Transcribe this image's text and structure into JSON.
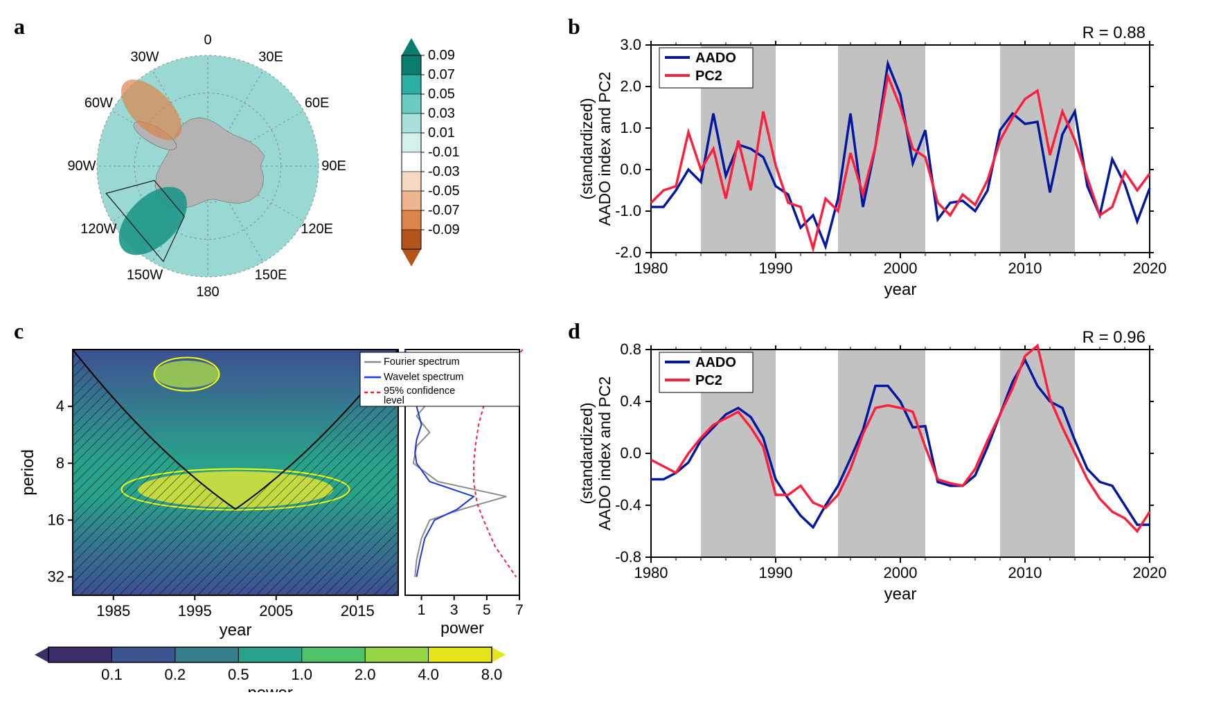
{
  "panel_labels": {
    "a": "a",
    "b": "b",
    "c": "c",
    "d": "d"
  },
  "panel_a": {
    "type": "polar-map",
    "lon_labels": [
      "0",
      "30E",
      "60E",
      "90E",
      "120E",
      "150E",
      "180",
      "150W",
      "120W",
      "90W",
      "60W",
      "30W"
    ],
    "colorbar_ticks": [
      "0.09",
      "0.07",
      "0.05",
      "0.03",
      "0.01",
      "-0.01",
      "-0.03",
      "-0.05",
      "-0.07",
      "-0.09"
    ],
    "colorbar_colors": [
      "#0a7d6e",
      "#2bb0a3",
      "#6cccc4",
      "#a8e1db",
      "#d4f0ed",
      "#ffffff",
      "#f5d7c2",
      "#edb48d",
      "#dc8449",
      "#b5541a"
    ],
    "ocean_fill": "#9ad9d3",
    "land_fill": "#b3b3b3",
    "pos_region": "#dc8449",
    "neg_region": "#1e9688"
  },
  "panel_b": {
    "type": "line",
    "xlim": [
      1980,
      2020
    ],
    "ylim": [
      -2.0,
      3.0
    ],
    "xticks": [
      1980,
      1990,
      2000,
      2010,
      2020
    ],
    "yticks": [
      -2.0,
      -1.0,
      0.0,
      1.0,
      2.0,
      3.0
    ],
    "xlabel": "year",
    "ylabel": "AADO index and PC2\n(standardized)",
    "r_text": "R = 0.88",
    "legend": [
      "AADO",
      "PC2"
    ],
    "series_colors": {
      "AADO": "#0018a1",
      "PC2": "#ff1f3c"
    },
    "shade_color": "#c2c2c2",
    "shaded_ranges": [
      [
        1984,
        1990
      ],
      [
        1995,
        2002
      ],
      [
        2008,
        2014
      ]
    ],
    "aado": [
      [
        1980,
        -0.9
      ],
      [
        1981,
        -0.9
      ],
      [
        1982,
        -0.5
      ],
      [
        1983,
        0.0
      ],
      [
        1984,
        -0.3
      ],
      [
        1985,
        1.35
      ],
      [
        1986,
        -0.15
      ],
      [
        1987,
        0.6
      ],
      [
        1988,
        0.5
      ],
      [
        1989,
        0.3
      ],
      [
        1990,
        -0.4
      ],
      [
        1991,
        -0.6
      ],
      [
        1992,
        -1.4
      ],
      [
        1993,
        -1.1
      ],
      [
        1994,
        -1.85
      ],
      [
        1995,
        -0.7
      ],
      [
        1996,
        1.35
      ],
      [
        1997,
        -0.9
      ],
      [
        1998,
        0.55
      ],
      [
        1999,
        2.55
      ],
      [
        2000,
        1.8
      ],
      [
        2001,
        0.15
      ],
      [
        2002,
        0.95
      ],
      [
        2003,
        -1.2
      ],
      [
        2004,
        -0.8
      ],
      [
        2005,
        -0.75
      ],
      [
        2006,
        -1.0
      ],
      [
        2007,
        -0.5
      ],
      [
        2008,
        0.95
      ],
      [
        2009,
        1.35
      ],
      [
        2010,
        1.1
      ],
      [
        2011,
        1.15
      ],
      [
        2012,
        -0.55
      ],
      [
        2013,
        0.85
      ],
      [
        2014,
        1.4
      ],
      [
        2015,
        -0.4
      ],
      [
        2016,
        -1.1
      ],
      [
        2017,
        0.25
      ],
      [
        2018,
        -0.35
      ],
      [
        2019,
        -1.25
      ],
      [
        2020,
        -0.45
      ]
    ],
    "pc2": [
      [
        1980,
        -0.8
      ],
      [
        1981,
        -0.5
      ],
      [
        1982,
        -0.4
      ],
      [
        1983,
        0.9
      ],
      [
        1984,
        0.0
      ],
      [
        1985,
        0.5
      ],
      [
        1986,
        -0.7
      ],
      [
        1987,
        0.7
      ],
      [
        1988,
        -0.5
      ],
      [
        1989,
        1.4
      ],
      [
        1990,
        0.1
      ],
      [
        1991,
        -0.8
      ],
      [
        1992,
        -0.9
      ],
      [
        1993,
        -1.9
      ],
      [
        1994,
        -0.7
      ],
      [
        1995,
        -1.0
      ],
      [
        1996,
        0.4
      ],
      [
        1997,
        -0.6
      ],
      [
        1998,
        0.55
      ],
      [
        1999,
        2.25
      ],
      [
        2000,
        1.5
      ],
      [
        2001,
        0.5
      ],
      [
        2002,
        0.3
      ],
      [
        2003,
        -0.8
      ],
      [
        2004,
        -1.1
      ],
      [
        2005,
        -0.6
      ],
      [
        2006,
        -0.85
      ],
      [
        2007,
        -0.25
      ],
      [
        2008,
        0.7
      ],
      [
        2009,
        1.25
      ],
      [
        2010,
        1.7
      ],
      [
        2011,
        1.9
      ],
      [
        2012,
        0.35
      ],
      [
        2013,
        1.4
      ],
      [
        2014,
        0.7
      ],
      [
        2015,
        -0.2
      ],
      [
        2016,
        -1.1
      ],
      [
        2017,
        -0.9
      ],
      [
        2018,
        -0.05
      ],
      [
        2019,
        -0.5
      ],
      [
        2020,
        -0.1
      ]
    ]
  },
  "panel_c": {
    "type": "wavelet",
    "xlim": [
      1980,
      2020
    ],
    "period_ticks": [
      4,
      8,
      16,
      32
    ],
    "xticks": [
      1985,
      1995,
      2005,
      2015
    ],
    "xlabel": "year",
    "ylabel": "period",
    "cbar_ticks": [
      "0.1",
      "0.2",
      "0.5",
      "1.0",
      "2.0",
      "4.0",
      "8.0"
    ],
    "cbar_label": "power",
    "cbar_colors": [
      "#3d2e6b",
      "#3c5490",
      "#347e8e",
      "#2aa18a",
      "#4ec36b",
      "#95d543",
      "#e7e419"
    ],
    "spectrum": {
      "xlabel": "power",
      "xticks": [
        1,
        3,
        5,
        7
      ],
      "legend": [
        "Fourier spectrum",
        "Wavelet spectrum",
        "95% confidence level"
      ],
      "legend_label3": "95% confidence\nlevel",
      "colors": {
        "fourier": "#8a8a8a",
        "wavelet": "#1737e0",
        "conf": "#ff1f3c"
      },
      "fourier": [
        [
          0,
          2
        ],
        [
          0.3,
          3
        ],
        [
          0.5,
          3.5
        ],
        [
          1.2,
          4
        ],
        [
          0.7,
          4.5
        ],
        [
          1.5,
          5.5
        ],
        [
          0.7,
          6.5
        ],
        [
          0.5,
          8
        ],
        [
          2,
          10
        ],
        [
          6.2,
          12
        ],
        [
          3.5,
          14
        ],
        [
          1.5,
          16
        ],
        [
          1,
          20
        ],
        [
          0.7,
          26
        ],
        [
          0.6,
          32
        ]
      ],
      "wavelet": [
        [
          0,
          2
        ],
        [
          0.4,
          3
        ],
        [
          0.7,
          4
        ],
        [
          1.0,
          5
        ],
        [
          0.7,
          6
        ],
        [
          0.6,
          7
        ],
        [
          0.7,
          8
        ],
        [
          1.5,
          10
        ],
        [
          4.2,
          12
        ],
        [
          3.2,
          14
        ],
        [
          1.8,
          16
        ],
        [
          1.2,
          20
        ],
        [
          0.9,
          26
        ],
        [
          0.7,
          32
        ]
      ],
      "conf": [
        [
          7.2,
          2
        ],
        [
          5.5,
          3
        ],
        [
          4.8,
          4
        ],
        [
          4.5,
          5
        ],
        [
          4.3,
          6.5
        ],
        [
          4.2,
          8
        ],
        [
          4.2,
          10
        ],
        [
          4.4,
          13
        ],
        [
          4.8,
          16
        ],
        [
          5.5,
          22
        ],
        [
          6.8,
          32
        ]
      ]
    }
  },
  "panel_d": {
    "type": "line",
    "xlim": [
      1980,
      2020
    ],
    "ylim": [
      -0.8,
      0.8
    ],
    "xticks": [
      1980,
      1990,
      2000,
      2010,
      2020
    ],
    "yticks": [
      -0.8,
      -0.4,
      0.0,
      0.4,
      0.8
    ],
    "xlabel": "year",
    "ylabel": "AADO index and PC2\n(standardized)",
    "r_text": "R = 0.96",
    "legend": [
      "AADO",
      "PC2"
    ],
    "series_colors": {
      "AADO": "#0018a1",
      "PC2": "#ff1f3c"
    },
    "shade_color": "#c2c2c2",
    "shaded_ranges": [
      [
        1984,
        1990
      ],
      [
        1995,
        2002
      ],
      [
        2008,
        2014
      ]
    ],
    "aado": [
      [
        1980,
        -0.2
      ],
      [
        1981,
        -0.2
      ],
      [
        1982,
        -0.15
      ],
      [
        1983,
        -0.07
      ],
      [
        1984,
        0.1
      ],
      [
        1985,
        0.2
      ],
      [
        1986,
        0.3
      ],
      [
        1987,
        0.35
      ],
      [
        1988,
        0.28
      ],
      [
        1989,
        0.12
      ],
      [
        1990,
        -0.2
      ],
      [
        1991,
        -0.35
      ],
      [
        1992,
        -0.48
      ],
      [
        1993,
        -0.57
      ],
      [
        1994,
        -0.4
      ],
      [
        1995,
        -0.25
      ],
      [
        1996,
        -0.04
      ],
      [
        1997,
        0.18
      ],
      [
        1998,
        0.52
      ],
      [
        1999,
        0.52
      ],
      [
        2000,
        0.4
      ],
      [
        2001,
        0.2
      ],
      [
        2002,
        0.21
      ],
      [
        2003,
        -0.22
      ],
      [
        2004,
        -0.25
      ],
      [
        2005,
        -0.25
      ],
      [
        2006,
        -0.17
      ],
      [
        2007,
        0.05
      ],
      [
        2008,
        0.3
      ],
      [
        2009,
        0.55
      ],
      [
        2010,
        0.72
      ],
      [
        2011,
        0.52
      ],
      [
        2012,
        0.4
      ],
      [
        2013,
        0.35
      ],
      [
        2014,
        0.1
      ],
      [
        2015,
        -0.12
      ],
      [
        2016,
        -0.22
      ],
      [
        2017,
        -0.25
      ],
      [
        2018,
        -0.4
      ],
      [
        2019,
        -0.55
      ],
      [
        2020,
        -0.55
      ]
    ],
    "pc2": [
      [
        1980,
        -0.05
      ],
      [
        1981,
        -0.1
      ],
      [
        1982,
        -0.15
      ],
      [
        1983,
        0.0
      ],
      [
        1984,
        0.12
      ],
      [
        1985,
        0.22
      ],
      [
        1986,
        0.27
      ],
      [
        1987,
        0.32
      ],
      [
        1988,
        0.2
      ],
      [
        1989,
        0.05
      ],
      [
        1990,
        -0.32
      ],
      [
        1991,
        -0.32
      ],
      [
        1992,
        -0.25
      ],
      [
        1993,
        -0.38
      ],
      [
        1994,
        -0.42
      ],
      [
        1995,
        -0.32
      ],
      [
        1996,
        -0.12
      ],
      [
        1997,
        0.15
      ],
      [
        1998,
        0.35
      ],
      [
        1999,
        0.37
      ],
      [
        2000,
        0.35
      ],
      [
        2001,
        0.32
      ],
      [
        2002,
        0.05
      ],
      [
        2003,
        -0.2
      ],
      [
        2004,
        -0.23
      ],
      [
        2005,
        -0.25
      ],
      [
        2006,
        -0.12
      ],
      [
        2007,
        0.1
      ],
      [
        2008,
        0.3
      ],
      [
        2009,
        0.5
      ],
      [
        2010,
        0.75
      ],
      [
        2011,
        0.83
      ],
      [
        2012,
        0.42
      ],
      [
        2013,
        0.2
      ],
      [
        2014,
        0.0
      ],
      [
        2015,
        -0.2
      ],
      [
        2016,
        -0.35
      ],
      [
        2017,
        -0.45
      ],
      [
        2018,
        -0.5
      ],
      [
        2019,
        -0.6
      ],
      [
        2020,
        -0.45
      ]
    ]
  }
}
